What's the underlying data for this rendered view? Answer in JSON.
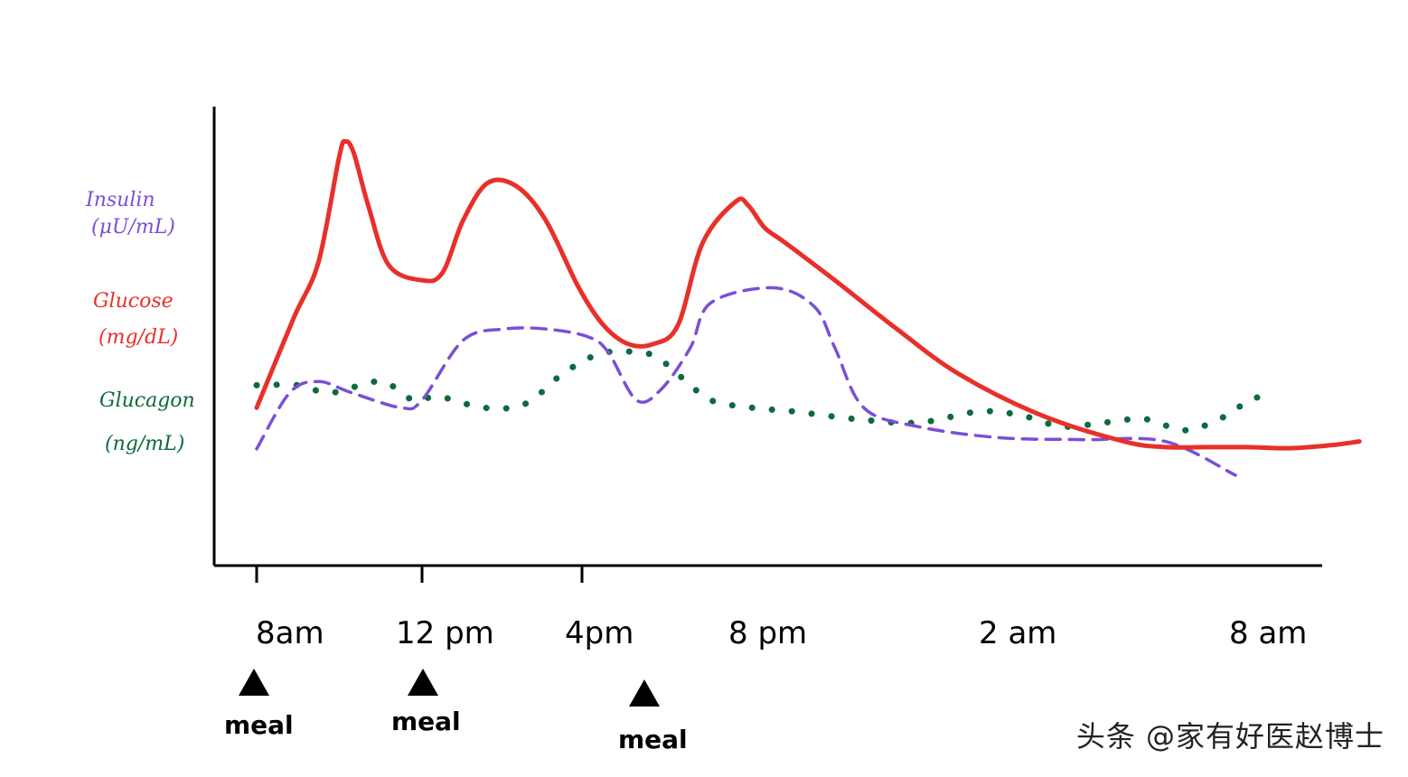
{
  "chart_data": {
    "type": "line",
    "title": "",
    "xlabel": "",
    "ylabel": "",
    "grid": false,
    "x_ticks": [
      {
        "label": "8am",
        "hour": 0
      },
      {
        "label": "12 pm",
        "hour": 4
      },
      {
        "label": "4pm",
        "hour": 8
      },
      {
        "label": "8 pm",
        "hour": 12
      },
      {
        "label": "2 am",
        "hour": 18
      },
      {
        "label": "8 am",
        "hour": 24
      }
    ],
    "meals": [
      {
        "label": "meal",
        "hour": 0
      },
      {
        "label": "meal",
        "hour": 4
      },
      {
        "label": "meal",
        "hour": 9.5
      }
    ],
    "series": [
      {
        "name": "Glucose",
        "unit": "(mg/dL)",
        "color": "#e8302a",
        "style": "solid",
        "x": [
          0,
          0.9,
          1.5,
          2.0,
          2.15,
          2.35,
          2.7,
          3.2,
          4.0,
          4.5,
          5.0,
          5.6,
          6.3,
          7.0,
          7.8,
          8.4,
          9.0,
          9.6,
          10.2,
          10.8,
          11.6,
          11.9,
          12.3,
          12.8,
          14.0,
          15.5,
          17.0,
          19.0,
          21.0,
          22.0,
          23.0,
          24.0,
          25.0,
          26.0,
          26.7
        ],
        "y": [
          1.8,
          4.2,
          5.7,
          8.5,
          8.9,
          8.6,
          7.2,
          5.6,
          5.2,
          5.4,
          6.8,
          7.8,
          7.7,
          6.8,
          5.0,
          4.0,
          3.5,
          3.5,
          4.0,
          6.2,
          7.3,
          7.2,
          6.6,
          6.2,
          5.2,
          3.9,
          2.7,
          1.6,
          0.9,
          0.75,
          0.75,
          0.75,
          0.72,
          0.8,
          0.9
        ]
      },
      {
        "name": "Insulin",
        "unit": "(μU/mL)",
        "color": "#7b4fd6",
        "style": "dashed",
        "x": [
          0,
          0.8,
          1.5,
          2.3,
          3.5,
          4.0,
          5.0,
          6.0,
          7.0,
          8.0,
          8.5,
          9.2,
          9.8,
          10.5,
          11.0,
          12.5,
          13.5,
          14.0,
          14.7,
          16.0,
          18.0,
          20.0,
          22.0,
          23.7
        ],
        "y": [
          0.7,
          2.2,
          2.5,
          2.2,
          1.8,
          2.0,
          3.6,
          3.9,
          3.9,
          3.7,
          3.3,
          2.0,
          2.3,
          3.4,
          4.6,
          5.0,
          4.5,
          3.4,
          1.8,
          1.3,
          1.0,
          0.95,
          0.9,
          0.0
        ]
      },
      {
        "name": "Glucagon",
        "unit": "(ng/mL)",
        "color": "#0d6b3a",
        "style": "dotted",
        "x": [
          0,
          1.0,
          1.8,
          3.0,
          3.8,
          4.4,
          5.5,
          6.5,
          7.4,
          8.2,
          8.8,
          9.6,
          10.3,
          11.0,
          12.0,
          13.0,
          14.5,
          16.0,
          17.5,
          18.5,
          19.5,
          20.5,
          21.5,
          22.5,
          23.5,
          24.0,
          24.4
        ],
        "y": [
          2.4,
          2.4,
          2.2,
          2.5,
          2.0,
          2.1,
          1.8,
          1.9,
          2.7,
          3.2,
          3.3,
          3.2,
          2.6,
          2.0,
          1.8,
          1.7,
          1.5,
          1.4,
          1.7,
          1.6,
          1.3,
          1.4,
          1.5,
          1.2,
          1.6,
          2.0,
          2.1
        ]
      }
    ],
    "xlim": [
      0,
      26.7
    ],
    "ylim": [
      -2.7,
      9.5
    ]
  },
  "watermark": "头条 @家有好医赵博士"
}
